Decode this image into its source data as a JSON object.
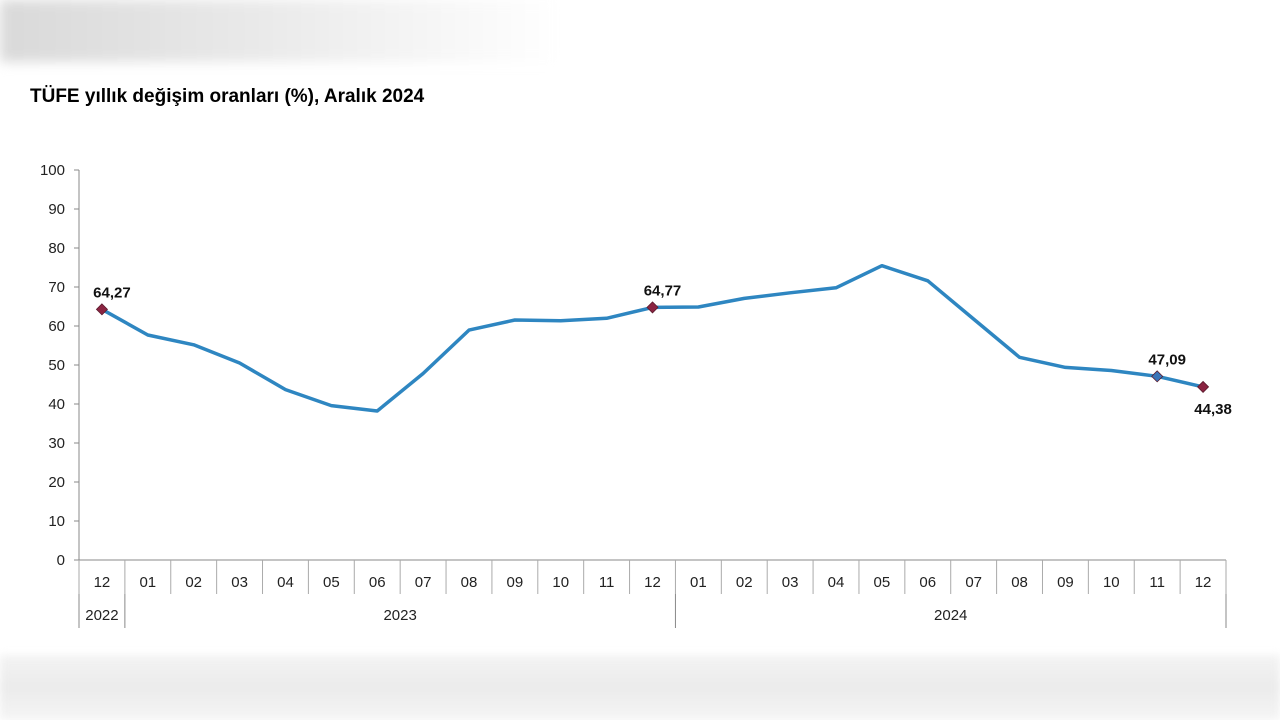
{
  "chart_data": {
    "type": "line",
    "title": "TÜFE yıllık değişim oranları (%), Aralık 2024",
    "ylim": [
      0,
      100
    ],
    "yticks": [
      0,
      10,
      20,
      30,
      40,
      50,
      60,
      70,
      80,
      90,
      100
    ],
    "categories": [
      "12",
      "01",
      "02",
      "03",
      "04",
      "05",
      "06",
      "07",
      "08",
      "09",
      "10",
      "11",
      "12",
      "01",
      "02",
      "03",
      "04",
      "05",
      "06",
      "07",
      "08",
      "09",
      "10",
      "11",
      "12"
    ],
    "year_groups": [
      {
        "label": "2022",
        "count": 1
      },
      {
        "label": "2023",
        "count": 12
      },
      {
        "label": "2024",
        "count": 12
      }
    ],
    "series": [
      {
        "values": [
          64.27,
          57.68,
          55.18,
          50.51,
          43.68,
          39.59,
          38.21,
          47.83,
          58.94,
          61.53,
          61.36,
          61.98,
          64.77,
          64.86,
          67.07,
          68.5,
          69.8,
          75.45,
          71.6,
          61.78,
          51.97,
          49.38,
          48.58,
          47.09,
          44.38
        ],
        "color": "#2e86c1"
      }
    ],
    "annotations": [
      {
        "index": 0,
        "text": "64,27",
        "marker_color": "#8b2442",
        "position": "above"
      },
      {
        "index": 12,
        "text": "64,77",
        "marker_color": "#8b2442",
        "position": "above"
      },
      {
        "index": 23,
        "text": "47,09",
        "marker_color": "#3a75b8",
        "position": "above"
      },
      {
        "index": 24,
        "text": "44,38",
        "marker_color": "#8b2442",
        "position": "below"
      }
    ],
    "grid": false,
    "legend": "none"
  }
}
